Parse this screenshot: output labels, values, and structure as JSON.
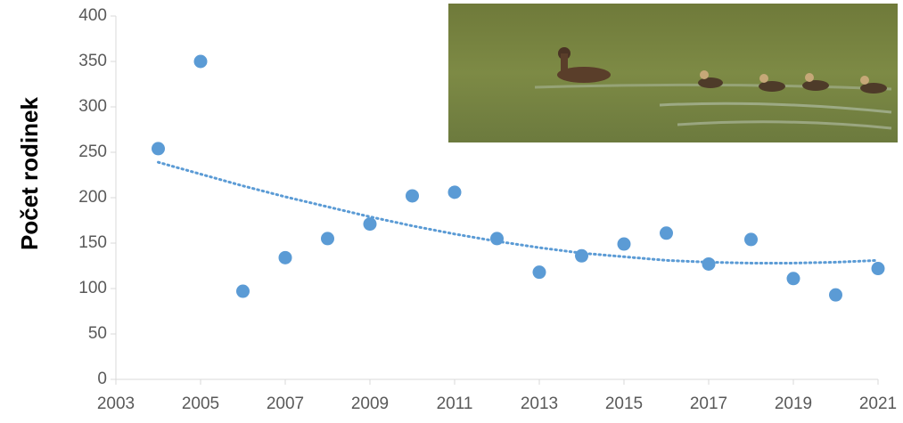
{
  "chart_data": {
    "type": "scatter",
    "y_label": "Počet rodinek",
    "x": [
      2004,
      2005,
      2006,
      2007,
      2008,
      2009,
      2010,
      2011,
      2012,
      2013,
      2014,
      2015,
      2016,
      2017,
      2018,
      2019,
      2020,
      2021
    ],
    "values": [
      254,
      350,
      97,
      134,
      155,
      171,
      202,
      206,
      155,
      118,
      136,
      149,
      161,
      127,
      154,
      111,
      93,
      122
    ],
    "color": "#5b9bd5",
    "trendline": {
      "color": "#5b9bd5",
      "values": [
        239,
        226,
        213,
        201,
        190,
        179,
        169,
        160,
        152,
        145,
        139,
        135,
        131,
        129,
        128,
        128,
        129,
        131
      ]
    },
    "xlim": [
      2003,
      2021
    ],
    "xticks": [
      2003,
      2005,
      2007,
      2009,
      2011,
      2013,
      2015,
      2017,
      2019,
      2021
    ],
    "ylim": [
      0,
      400
    ],
    "yticks": [
      0,
      50,
      100,
      150,
      200,
      250,
      300,
      350,
      400
    ],
    "grid": false
  }
}
